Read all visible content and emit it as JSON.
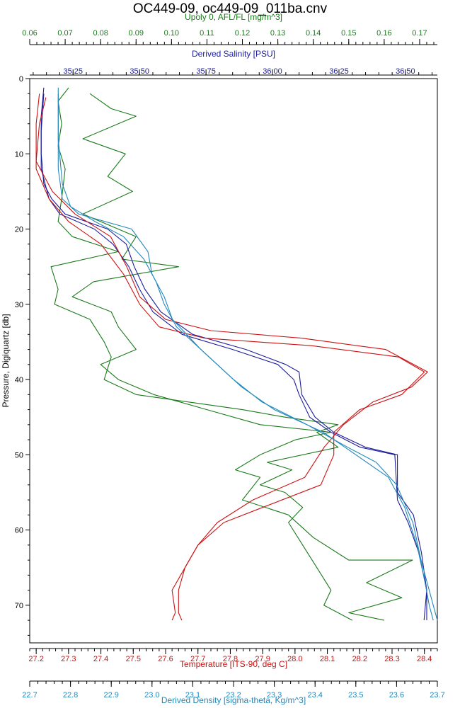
{
  "chart_data": {
    "type": "line",
    "title": "OC449-09, oc449-09_011ba.cnv",
    "grid": false,
    "legend": "none",
    "y_axis": {
      "label": "Pressure, Digiquartz [db]",
      "range": [
        0,
        75
      ],
      "inverted": true,
      "ticks": [
        "0",
        "10",
        "20",
        "30",
        "40",
        "50",
        "60",
        "70"
      ]
    },
    "x_axes": [
      {
        "id": "afl",
        "label": "Upoly 0, AFL/FL [mg/m^3]",
        "position": "top",
        "range": [
          0.06,
          0.175
        ],
        "color": "#1a7a1a",
        "ticks": [
          "0.06",
          "0.07",
          "0.08",
          "0.09",
          "0.10",
          "0.11",
          "0.12",
          "0.13",
          "0.14",
          "0.15",
          "0.16",
          "0.17"
        ]
      },
      {
        "id": "sal",
        "label": "Derived Salinity [PSU]",
        "position": "top-inner",
        "range": [
          35.087,
          36.62
        ],
        "color": "#1c1c9c",
        "ticks": [
          "35.25",
          "35.50",
          "35.75",
          "36.00",
          "36.25",
          "36.50"
        ]
      },
      {
        "id": "temp",
        "label": "Temperature [ITS-90, deg C]",
        "position": "bottom",
        "range": [
          27.18,
          28.44
        ],
        "color": "#cc1111",
        "ticks": [
          "27.2",
          "27.3",
          "27.4",
          "27.5",
          "27.6",
          "27.7",
          "27.8",
          "27.9",
          "28.0",
          "28.1",
          "28.2",
          "28.3",
          "28.4"
        ]
      },
      {
        "id": "dens",
        "label": "Derived Density [sigma-theta, Kg/m^3]",
        "position": "bottom-outer",
        "range": [
          22.7,
          23.7
        ],
        "color": "#2288bb",
        "ticks": [
          "22.7",
          "22.8",
          "22.9",
          "23.0",
          "23.1",
          "23.2",
          "23.3",
          "23.4",
          "23.5",
          "23.6",
          "23.7"
        ]
      }
    ],
    "series": [
      {
        "axis": "afl",
        "color": "#1a7a1a",
        "points": [
          [
            0.071,
            1.2
          ],
          [
            0.068,
            3
          ],
          [
            0.069,
            6
          ],
          [
            0.068,
            9
          ],
          [
            0.07,
            12
          ],
          [
            0.069,
            16
          ],
          [
            0.068,
            19
          ],
          [
            0.072,
            21
          ],
          [
            0.085,
            23
          ],
          [
            0.066,
            25
          ],
          [
            0.068,
            28
          ],
          [
            0.067,
            30
          ],
          [
            0.077,
            32
          ],
          [
            0.081,
            35
          ],
          [
            0.083,
            37
          ],
          [
            0.081,
            40
          ],
          [
            0.09,
            42
          ],
          [
            0.105,
            43
          ],
          [
            0.12,
            44
          ],
          [
            0.132,
            45
          ],
          [
            0.147,
            46
          ],
          [
            0.141,
            47
          ],
          [
            0.147,
            49
          ],
          [
            0.127,
            51
          ],
          [
            0.134,
            52
          ],
          [
            0.125,
            54
          ],
          [
            0.132,
            55
          ],
          [
            0.137,
            57
          ],
          [
            0.133,
            59
          ],
          [
            0.137,
            62
          ],
          [
            0.141,
            65
          ],
          [
            0.145,
            68
          ],
          [
            0.143,
            70
          ],
          [
            0.151,
            72
          ]
        ]
      },
      {
        "axis": "afl",
        "color": "#1a7a1a",
        "points": [
          [
            0.077,
            2
          ],
          [
            0.083,
            4
          ],
          [
            0.09,
            5
          ],
          [
            0.075,
            8
          ],
          [
            0.087,
            10
          ],
          [
            0.082,
            13
          ],
          [
            0.089,
            15
          ],
          [
            0.075,
            18
          ],
          [
            0.09,
            21
          ],
          [
            0.086,
            24
          ],
          [
            0.102,
            25
          ],
          [
            0.078,
            27
          ],
          [
            0.072,
            29
          ],
          [
            0.083,
            31
          ],
          [
            0.085,
            33
          ],
          [
            0.09,
            36
          ],
          [
            0.08,
            38
          ],
          [
            0.085,
            40
          ],
          [
            0.095,
            42
          ],
          [
            0.11,
            44
          ],
          [
            0.125,
            46
          ],
          [
            0.145,
            47
          ],
          [
            0.135,
            48
          ],
          [
            0.125,
            50
          ],
          [
            0.118,
            52
          ],
          [
            0.125,
            53
          ],
          [
            0.12,
            56
          ],
          [
            0.133,
            58
          ],
          [
            0.14,
            61
          ],
          [
            0.15,
            64
          ],
          [
            0.168,
            64
          ],
          [
            0.155,
            67
          ],
          [
            0.165,
            69
          ],
          [
            0.15,
            71
          ],
          [
            0.16,
            72
          ]
        ]
      },
      {
        "axis": "sal",
        "color": "#1c1c9c",
        "points": [
          [
            35.14,
            1.2
          ],
          [
            35.13,
            5
          ],
          [
            35.13,
            10
          ],
          [
            35.14,
            14
          ],
          [
            35.17,
            16
          ],
          [
            35.22,
            18
          ],
          [
            35.38,
            20
          ],
          [
            35.45,
            22
          ],
          [
            35.48,
            25
          ],
          [
            35.52,
            28
          ],
          [
            35.58,
            31
          ],
          [
            35.7,
            34
          ],
          [
            35.9,
            36
          ],
          [
            36.05,
            38
          ],
          [
            36.1,
            39
          ],
          [
            36.11,
            42
          ],
          [
            36.16,
            45
          ],
          [
            36.23,
            47
          ],
          [
            36.35,
            49
          ],
          [
            36.47,
            50
          ],
          [
            36.47,
            55
          ],
          [
            36.53,
            58
          ],
          [
            36.56,
            63
          ],
          [
            36.58,
            68
          ],
          [
            36.58,
            72
          ]
        ]
      },
      {
        "axis": "sal",
        "color": "#1c1c9c",
        "points": [
          [
            35.14,
            2
          ],
          [
            35.13,
            7
          ],
          [
            35.13,
            12
          ],
          [
            35.16,
            16
          ],
          [
            35.2,
            18
          ],
          [
            35.33,
            20
          ],
          [
            35.4,
            22
          ],
          [
            35.46,
            25
          ],
          [
            35.5,
            28
          ],
          [
            35.55,
            31
          ],
          [
            35.66,
            34
          ],
          [
            35.85,
            36
          ],
          [
            36.02,
            38
          ],
          [
            36.08,
            40
          ],
          [
            36.1,
            42
          ],
          [
            36.14,
            45
          ],
          [
            36.22,
            47
          ],
          [
            36.33,
            49
          ],
          [
            36.46,
            50
          ],
          [
            36.47,
            56
          ],
          [
            36.51,
            59
          ],
          [
            36.55,
            63
          ],
          [
            36.58,
            68
          ],
          [
            36.57,
            72
          ]
        ]
      },
      {
        "axis": "temp",
        "color": "#cc1111",
        "points": [
          [
            27.21,
            2
          ],
          [
            27.2,
            6
          ],
          [
            27.2,
            12
          ],
          [
            27.24,
            16
          ],
          [
            27.3,
            19
          ],
          [
            27.4,
            22
          ],
          [
            27.47,
            26
          ],
          [
            27.52,
            30
          ],
          [
            27.58,
            33
          ],
          [
            27.72,
            34.5
          ],
          [
            28.05,
            35.5
          ],
          [
            28.32,
            37
          ],
          [
            28.4,
            39
          ],
          [
            28.33,
            42
          ],
          [
            28.2,
            44
          ],
          [
            28.12,
            47
          ],
          [
            28.12,
            50
          ],
          [
            28.08,
            54
          ],
          [
            27.9,
            57
          ],
          [
            27.78,
            59
          ],
          [
            27.7,
            62
          ],
          [
            27.66,
            65
          ],
          [
            27.62,
            68
          ],
          [
            27.63,
            71
          ],
          [
            27.62,
            72
          ]
        ]
      },
      {
        "axis": "temp",
        "color": "#cc1111",
        "points": [
          [
            27.23,
            2.5
          ],
          [
            27.21,
            6
          ],
          [
            27.2,
            11
          ],
          [
            27.25,
            15
          ],
          [
            27.32,
            18
          ],
          [
            27.43,
            21
          ],
          [
            27.48,
            25
          ],
          [
            27.52,
            29
          ],
          [
            27.6,
            32
          ],
          [
            27.74,
            33.5
          ],
          [
            28.02,
            34.5
          ],
          [
            28.28,
            36
          ],
          [
            28.41,
            39
          ],
          [
            28.36,
            41
          ],
          [
            28.24,
            43
          ],
          [
            28.15,
            46
          ],
          [
            28.09,
            49
          ],
          [
            28.03,
            53
          ],
          [
            27.87,
            56
          ],
          [
            27.76,
            59
          ],
          [
            27.7,
            62
          ],
          [
            27.66,
            65
          ],
          [
            27.64,
            68
          ],
          [
            27.64,
            71
          ],
          [
            27.65,
            72
          ]
        ]
      },
      {
        "axis": "dens",
        "color": "#2288bb",
        "points": [
          [
            22.77,
            1.2
          ],
          [
            22.77,
            6
          ],
          [
            22.77,
            12
          ],
          [
            22.78,
            16
          ],
          [
            22.82,
            18
          ],
          [
            22.95,
            20
          ],
          [
            22.99,
            23
          ],
          [
            23.0,
            26
          ],
          [
            23.03,
            29
          ],
          [
            23.05,
            32
          ],
          [
            23.12,
            36
          ],
          [
            23.2,
            40
          ],
          [
            23.27,
            43
          ],
          [
            23.38,
            46
          ],
          [
            23.48,
            49
          ],
          [
            23.55,
            51
          ],
          [
            23.6,
            54
          ],
          [
            23.64,
            59
          ],
          [
            23.66,
            64
          ],
          [
            23.69,
            70
          ],
          [
            23.7,
            72
          ]
        ]
      },
      {
        "axis": "dens",
        "color": "#2288bb",
        "points": [
          [
            22.77,
            2
          ],
          [
            22.77,
            8
          ],
          [
            22.78,
            14
          ],
          [
            22.8,
            17
          ],
          [
            22.86,
            19
          ],
          [
            22.93,
            21
          ],
          [
            22.98,
            24
          ],
          [
            23.01,
            27
          ],
          [
            23.03,
            30
          ],
          [
            23.06,
            33
          ],
          [
            23.14,
            37
          ],
          [
            23.22,
            41
          ],
          [
            23.3,
            44
          ],
          [
            23.42,
            47
          ],
          [
            23.5,
            50
          ],
          [
            23.58,
            53
          ],
          [
            23.62,
            57
          ],
          [
            23.65,
            62
          ],
          [
            23.67,
            67
          ],
          [
            23.68,
            70
          ],
          [
            23.69,
            72
          ]
        ]
      }
    ]
  }
}
